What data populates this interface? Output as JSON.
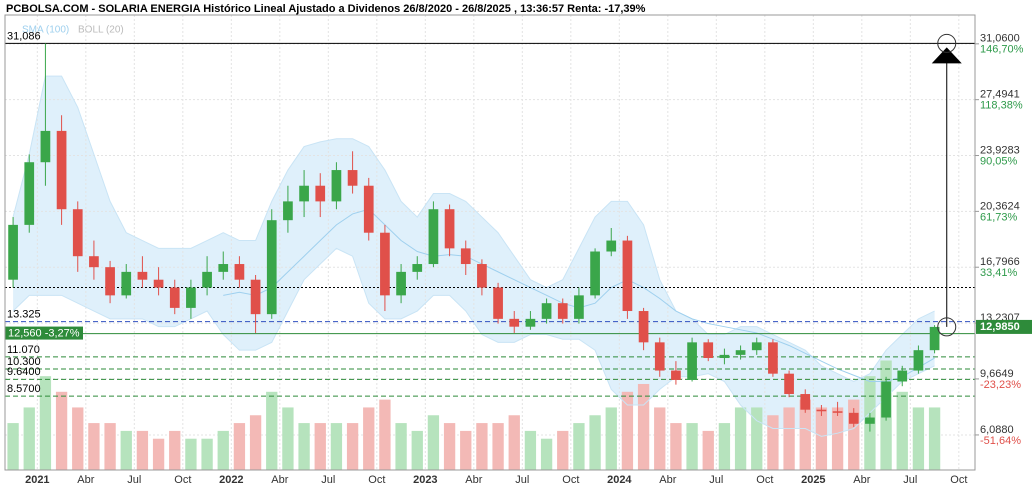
{
  "chart_data": {
    "type": "candlestick",
    "title": "PCBOLSA.COM - SOLARIA ENERGIA Histórico Lineal Ajustado a Dividenos 26/8/2020 - 26/8/2025 , 13:36:57 Renta: -17,39%",
    "legend": [
      {
        "name": "SMA (100)",
        "color": "#9fd0ee"
      },
      {
        "name": "BOLL (20)",
        "color": "#bbbbbb"
      }
    ],
    "categories": [
      null,
      null,
      "2021",
      null,
      null,
      "Abr",
      null,
      null,
      "Jul",
      null,
      null,
      "Oct",
      null,
      null,
      "2022",
      null,
      null,
      "Abr",
      null,
      null,
      "Jul",
      null,
      null,
      "Oct",
      null,
      null,
      "2023",
      null,
      null,
      "Abr",
      null,
      null,
      "Jul",
      null,
      null,
      "Oct",
      null,
      null,
      "2024",
      null,
      null,
      "Abr",
      null,
      null,
      "Jul",
      null,
      null,
      "Oct",
      null,
      null,
      "2025",
      null,
      null,
      "Abr",
      null,
      null,
      "Jul",
      null,
      null,
      "Oct"
    ],
    "open": [
      16,
      19.5,
      23.5,
      25.5,
      20.5,
      17.5,
      16.8,
      15,
      16.5,
      16,
      15.5,
      14.2,
      15.5,
      16.5,
      17,
      16,
      13.8,
      19.8,
      21,
      22,
      21,
      23,
      22,
      19,
      15,
      16.5,
      17,
      20.5,
      18,
      17,
      15.5,
      13.5,
      13,
      13.5,
      14.5,
      13.5,
      15,
      17.8,
      18.5,
      14,
      12,
      10.2,
      9.6,
      12,
      11,
      11.2,
      11.5,
      12,
      10,
      8.7,
      7.7,
      7.6,
      7.5,
      6.8,
      7.2,
      9.5,
      10.2,
      11.5,
      null,
      null
    ],
    "high": [
      20,
      24,
      31.086,
      26.5,
      21,
      18.5,
      17.2,
      17,
      17.5,
      16.8,
      16,
      16,
      17.5,
      17.8,
      17.5,
      16.3,
      20.5,
      22,
      23,
      22.8,
      23.5,
      24.2,
      22.5,
      19.5,
      17,
      17.5,
      21,
      20.8,
      18.5,
      17.3,
      15.8,
      14,
      14,
      14.8,
      14.8,
      15.5,
      18,
      19.3,
      18.8,
      14.2,
      12.3,
      10.8,
      12.3,
      12.2,
      11.6,
      11.8,
      12.3,
      12.2,
      10.2,
      9,
      8,
      8.2,
      7.8,
      7.5,
      9.8,
      10.5,
      11.8,
      13.1,
      null,
      null
    ],
    "low": [
      15.5,
      19,
      22,
      19.5,
      16.5,
      16,
      14.5,
      14.8,
      15.5,
      15,
      13.8,
      13.5,
      15,
      16,
      15.5,
      12.6,
      13.5,
      19,
      20,
      20,
      20.5,
      21.5,
      18.5,
      14,
      14.5,
      16,
      16.8,
      17.5,
      16.3,
      15,
      13.2,
      12.6,
      12.8,
      13.2,
      13.2,
      13.2,
      14.8,
      17.5,
      13.5,
      11.5,
      9.8,
      9.3,
      9.5,
      10.8,
      10.6,
      10.9,
      11.2,
      9.8,
      8.5,
      7.5,
      7.3,
      7.3,
      6.6,
      6.3,
      7,
      9.2,
      10,
      11.3,
      null,
      null
    ],
    "close": [
      19.5,
      23.5,
      25.5,
      20.5,
      17.5,
      16.8,
      15,
      16.5,
      16,
      15.5,
      14.2,
      15.5,
      16.5,
      17,
      16,
      13.8,
      19.8,
      21,
      22,
      21,
      23,
      22,
      19,
      15,
      16.5,
      17,
      20.5,
      18,
      17,
      15.5,
      13.5,
      13,
      13.5,
      14.5,
      13.5,
      15,
      17.8,
      18.5,
      14,
      12,
      10.2,
      9.6,
      12,
      11,
      11.2,
      11.5,
      12,
      10,
      8.7,
      7.7,
      7.6,
      7.5,
      6.8,
      7.2,
      9.5,
      10.2,
      11.5,
      12.985,
      null,
      null
    ],
    "volume": [
      3,
      4,
      6,
      5,
      4,
      3,
      3,
      2.5,
      2.5,
      2,
      2.5,
      2,
      2,
      2.5,
      3,
      3.5,
      5,
      4,
      3,
      3,
      3,
      3,
      4,
      4.5,
      3,
      2.5,
      3.5,
      3,
      2.5,
      3,
      3,
      3.5,
      2.5,
      2,
      2.5,
      3,
      3.5,
      4,
      5,
      5.5,
      4,
      3,
      3,
      2.5,
      3,
      4,
      4,
      3.5,
      4,
      4.5,
      4,
      4,
      4.5,
      6,
      7,
      5,
      4,
      4,
      null,
      null
    ],
    "vlim": [
      0,
      16
    ],
    "sma": [
      null,
      null,
      null,
      null,
      null,
      null,
      null,
      null,
      null,
      null,
      null,
      null,
      null,
      15,
      15.2,
      15,
      15.5,
      16.5,
      17.5,
      18.5,
      19.5,
      20.2,
      20.5,
      19.5,
      18.5,
      17.8,
      17.5,
      17.6,
      17.5,
      17,
      16.5,
      16,
      15.5,
      15,
      14.5,
      14.2,
      14.5,
      15.5,
      16,
      15.5,
      14.8,
      14,
      13.5,
      13.2,
      13,
      12.8,
      12.6,
      12.2,
      11.8,
      11.3,
      10.8,
      10.3,
      9.9,
      9.5,
      9.5,
      9.8,
      10.4,
      11,
      null,
      null
    ],
    "bollinger_upper": [
      20,
      24,
      29,
      29,
      27,
      24,
      21,
      19,
      18.5,
      18,
      18,
      18,
      18.5,
      19,
      18.5,
      18.5,
      21,
      23,
      24.5,
      24.8,
      25,
      25,
      24.5,
      23,
      21,
      20,
      21.5,
      21.5,
      21,
      20,
      19,
      17.5,
      16,
      15.5,
      16,
      18,
      20,
      21,
      21,
      19.5,
      16,
      14,
      13.5,
      12.5,
      12.5,
      13,
      13,
      12.5,
      12,
      11.5,
      10.5,
      10,
      9.5,
      10,
      11.5,
      12.5,
      13.5,
      14,
      null,
      null
    ],
    "bollinger_lower": [
      14,
      15,
      15,
      15,
      14.5,
      14,
      13.5,
      13.5,
      13.5,
      13,
      13,
      13.5,
      14,
      12.5,
      11.5,
      11.5,
      12,
      14,
      16,
      17,
      18,
      17.5,
      14.5,
      13.5,
      13.5,
      14,
      15,
      15,
      14,
      12.5,
      12,
      12,
      12.5,
      12.5,
      12.2,
      12.2,
      11.5,
      9,
      8,
      8,
      9,
      9.8,
      9.8,
      10,
      9.5,
      8,
      7,
      6.5,
      6.5,
      6.5,
      6,
      6.2,
      6.5,
      7.5,
      8.5,
      9.5,
      10,
      10.5,
      null,
      null
    ],
    "ylim": [
      3.85,
      32.9
    ],
    "yticks": [
      {
        "value": 31.06,
        "label": "31,0600"
      },
      {
        "value": 27.4941,
        "label": "27,4941"
      },
      {
        "value": 23.9283,
        "label": "23,9283"
      },
      {
        "value": 20.3624,
        "label": "20,3624"
      },
      {
        "value": 16.7966,
        "label": "16,7966"
      },
      {
        "value": 13.2307,
        "label": "13,2307"
      },
      {
        "value": 9.6649,
        "label": "9,6649"
      },
      {
        "value": 6.088,
        "label": "6,0880"
      }
    ],
    "ytick_pct_labels": [
      "146,70%",
      "118,38%",
      "90,05%",
      "61,73%",
      "33,41%",
      null,
      "-23,23%",
      "-51,64%"
    ],
    "levels": [
      {
        "value": 31.086,
        "label": "31,086",
        "color": "#000000",
        "style": "solid"
      },
      {
        "value": 15.5,
        "color": "#000000",
        "style": "dotted"
      },
      {
        "value": 13.325,
        "label": "13.325",
        "color": "#3050c0",
        "style": "dashed"
      },
      {
        "value": 12.56,
        "label": "12,560 -3,27%",
        "color": "#2e8b3a",
        "style": "solid"
      },
      {
        "value": 11.07,
        "label": "11.070",
        "color": "#2e8b3a",
        "style": "dashed"
      },
      {
        "value": 10.3,
        "label": "10.300",
        "color": "#2e8b3a",
        "style": "dashed"
      },
      {
        "value": 9.64,
        "label": "9.6400",
        "color": "#2e8b3a",
        "style": "dashed"
      },
      {
        "value": 8.57,
        "label": "8.5700",
        "color": "#2e8b3a",
        "style": "dashed"
      }
    ],
    "current_price": {
      "value": 12.985,
      "label": "12,9850",
      "color": "#2e8b3a"
    },
    "up_color": "#3aa64a",
    "down_color": "#e0504a",
    "grid": true
  }
}
